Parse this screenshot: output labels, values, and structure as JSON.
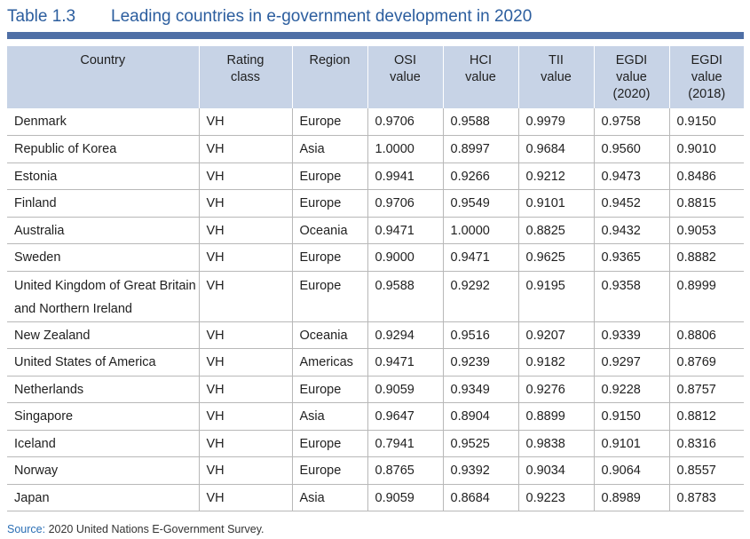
{
  "title": {
    "label": "Table 1.3",
    "text": "Leading countries in e-government development in 2020"
  },
  "columns": [
    {
      "lines": [
        "Country"
      ]
    },
    {
      "lines": [
        "Rating",
        "class"
      ]
    },
    {
      "lines": [
        "Region"
      ]
    },
    {
      "lines": [
        "OSI",
        "value"
      ]
    },
    {
      "lines": [
        "HCI",
        "value"
      ]
    },
    {
      "lines": [
        "TII",
        "value"
      ]
    },
    {
      "lines": [
        "EGDI",
        "value",
        "(2020)"
      ]
    },
    {
      "lines": [
        "EGDI",
        "value",
        "(2018)"
      ]
    }
  ],
  "rows": [
    [
      "Denmark",
      "VH",
      "Europe",
      "0.9706",
      "0.9588",
      "0.9979",
      "0.9758",
      "0.9150"
    ],
    [
      "Republic of Korea",
      "VH",
      "Asia",
      "1.0000",
      "0.8997",
      "0.9684",
      "0.9560",
      "0.9010"
    ],
    [
      "Estonia",
      "VH",
      "Europe",
      "0.9941",
      "0.9266",
      "0.9212",
      "0.9473",
      "0.8486"
    ],
    [
      "Finland",
      "VH",
      "Europe",
      "0.9706",
      "0.9549",
      "0.9101",
      "0.9452",
      "0.8815"
    ],
    [
      "Australia",
      "VH",
      "Oceania",
      "0.9471",
      "1.0000",
      "0.8825",
      "0.9432",
      "0.9053"
    ],
    [
      "Sweden",
      "VH",
      "Europe",
      "0.9000",
      "0.9471",
      "0.9625",
      "0.9365",
      "0.8882"
    ],
    [
      "United Kingdom of Great Britain and Northern Ireland",
      "VH",
      "Europe",
      "0.9588",
      "0.9292",
      "0.9195",
      "0.9358",
      "0.8999"
    ],
    [
      "New Zealand",
      "VH",
      "Oceania",
      "0.9294",
      "0.9516",
      "0.9207",
      "0.9339",
      "0.8806"
    ],
    [
      "United States of America",
      "VH",
      "Americas",
      "0.9471",
      "0.9239",
      "0.9182",
      "0.9297",
      "0.8769"
    ],
    [
      "Netherlands",
      "VH",
      "Europe",
      "0.9059",
      "0.9349",
      "0.9276",
      "0.9228",
      "0.8757"
    ],
    [
      "Singapore",
      "VH",
      "Asia",
      "0.9647",
      "0.8904",
      "0.8899",
      "0.9150",
      "0.8812"
    ],
    [
      "Iceland",
      "VH",
      "Europe",
      "0.7941",
      "0.9525",
      "0.9838",
      "0.9101",
      "0.8316"
    ],
    [
      "Norway",
      "VH",
      "Europe",
      "0.8765",
      "0.9392",
      "0.9034",
      "0.9064",
      "0.8557"
    ],
    [
      "Japan",
      "VH",
      "Asia",
      "0.9059",
      "0.8684",
      "0.9223",
      "0.8989",
      "0.8783"
    ]
  ],
  "source": {
    "label": "Source:",
    "text": "2020 United Nations E-Government Survey."
  },
  "colors": {
    "title": "#2b5d9e",
    "bar": "#4f6fa6",
    "header_bg": "#c7d3e6",
    "source_label": "#2b6fb5"
  }
}
